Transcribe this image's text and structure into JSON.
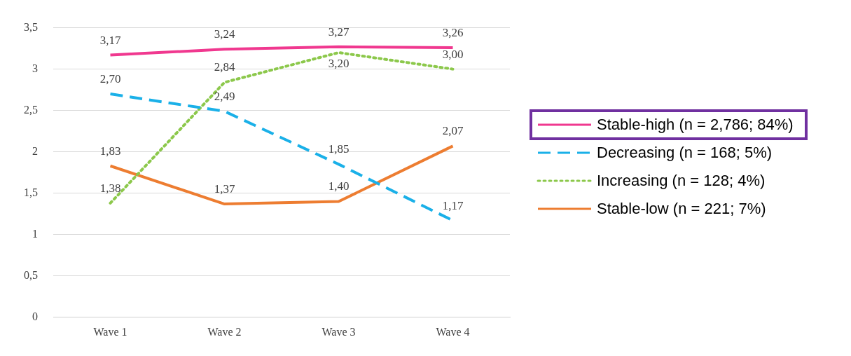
{
  "chart_data": {
    "type": "line",
    "categories": [
      "Wave 1",
      "Wave 2",
      "Wave 3",
      "Wave 4"
    ],
    "series": [
      {
        "name": "Stable-high (n = 2,786; 84%)",
        "color": "#f0388f",
        "line_style": "solid",
        "values": [
          3.17,
          3.24,
          3.27,
          3.26
        ],
        "value_labels": [
          "3,17",
          "3,24",
          "3,27",
          "3,26"
        ]
      },
      {
        "name": "Decreasing (n = 168; 5%)",
        "color": "#1ab0e8",
        "line_style": "dashed",
        "values": [
          2.7,
          2.49,
          1.85,
          1.17
        ],
        "value_labels": [
          "2,70",
          "2,49",
          "1,85",
          "1,17"
        ]
      },
      {
        "name": "Increasing (n = 128; 4%)",
        "color": "#8cc84b",
        "line_style": "dotted",
        "values": [
          1.38,
          2.84,
          3.2,
          3.0
        ],
        "value_labels": [
          "1,38",
          "2,84",
          "3,20",
          "3,00"
        ]
      },
      {
        "name": "Stable-low (n = 221; 7%)",
        "color": "#ed7d31",
        "line_style": "solid",
        "values": [
          1.83,
          1.37,
          1.4,
          2.07
        ],
        "value_labels": [
          "1,83",
          "1,37",
          "1,40",
          "2,07"
        ]
      }
    ],
    "ylim": [
      0,
      3.5
    ],
    "yticks": [
      0,
      {
        "value": 0.5,
        "label": "0,5"
      },
      1,
      {
        "value": 1.5,
        "label": "1,5"
      },
      2,
      {
        "value": 2.5,
        "label": "2,5"
      },
      3,
      {
        "value": 3.5,
        "label": "3,5"
      }
    ],
    "grid": "y",
    "legend": "right",
    "marker": "none"
  }
}
